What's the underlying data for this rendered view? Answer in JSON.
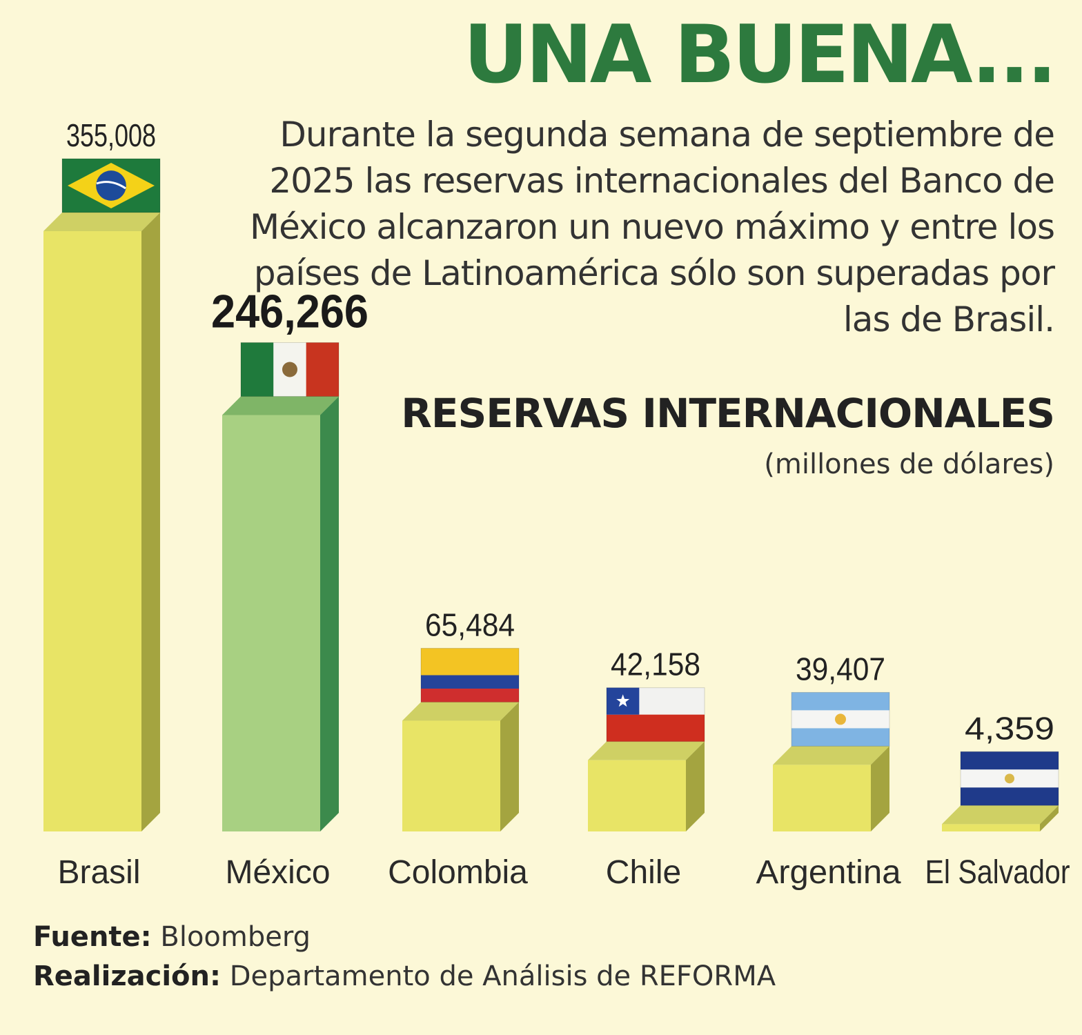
{
  "title": "UNA BUENA...",
  "subtitle": "Durante la segunda semana de septiembre de 2025 las reservas internacionales del Banco de México alcanzaron un nuevo máximo y entre los países de Latinoamérica sólo son superadas por las de Brasil.",
  "footer": {
    "source_label": "Fuente:",
    "source_value": "Bloomberg",
    "credit_label": "Realización:",
    "credit_value": "Departamento de Análisis de REFORMA"
  },
  "colors": {
    "title": "#2d7a3e",
    "bar_default": "#e8e466",
    "bar_highlight": "#a8d082",
    "background": "#fcf8d7"
  },
  "chart_data": {
    "type": "bar",
    "title": "RESERVAS INTERNACIONALES",
    "subtitle": "(millones de dólares)",
    "categories": [
      "Brasil",
      "México",
      "Colombia",
      "Chile",
      "Argentina",
      "El Salvador"
    ],
    "values": [
      355008,
      246266,
      65484,
      42158,
      39407,
      4359
    ],
    "value_labels": [
      "355,008",
      "246,266",
      "65,484",
      "42,158",
      "39,407",
      "4,359"
    ],
    "highlight": "México",
    "flag_icons": [
      "brazil-flag-icon",
      "mexico-flag-icon",
      "colombia-flag-icon",
      "chile-flag-icon",
      "argentina-flag-icon",
      "el-salvador-flag-icon"
    ],
    "grid": false,
    "legend": "none"
  }
}
